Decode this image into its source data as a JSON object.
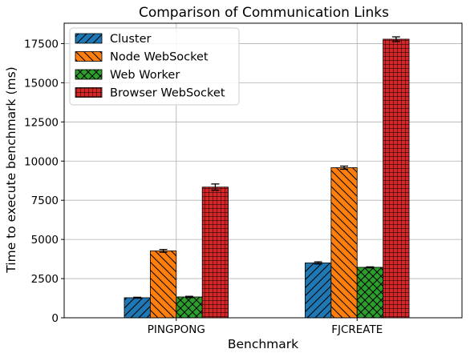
{
  "chart_data": {
    "type": "bar",
    "title": "Comparison of Communication Links",
    "xlabel": "Benchmark",
    "ylabel": "Time to execute benchmark (ms)",
    "categories": [
      "PINGPONG",
      "FJCREATE"
    ],
    "ylim": [
      0,
      18800
    ],
    "yticks": [
      0,
      2500,
      5000,
      7500,
      10000,
      12500,
      15000,
      17500
    ],
    "ytick_labels": [
      "0",
      "2500",
      "5000",
      "7500",
      "10000",
      "12500",
      "15000",
      "17500"
    ],
    "grid": true,
    "legend_position": "top-left",
    "series": [
      {
        "name": "Cluster",
        "values": [
          1280,
          3500
        ],
        "errors": [
          30,
          70
        ],
        "color": "#1f77b4",
        "hatch": "diagonal"
      },
      {
        "name": "Node WebSocket",
        "values": [
          4270,
          9580
        ],
        "errors": [
          90,
          100
        ],
        "color": "#ff7f0e",
        "hatch": "back-diagonal"
      },
      {
        "name": "Web Worker",
        "values": [
          1330,
          3220
        ],
        "errors": [
          40,
          30
        ],
        "color": "#2ca02c",
        "hatch": "crosshatch"
      },
      {
        "name": "Browser WebSocket",
        "values": [
          8340,
          17780
        ],
        "errors": [
          200,
          150
        ],
        "color": "#d62728",
        "hatch": "grid"
      }
    ]
  }
}
